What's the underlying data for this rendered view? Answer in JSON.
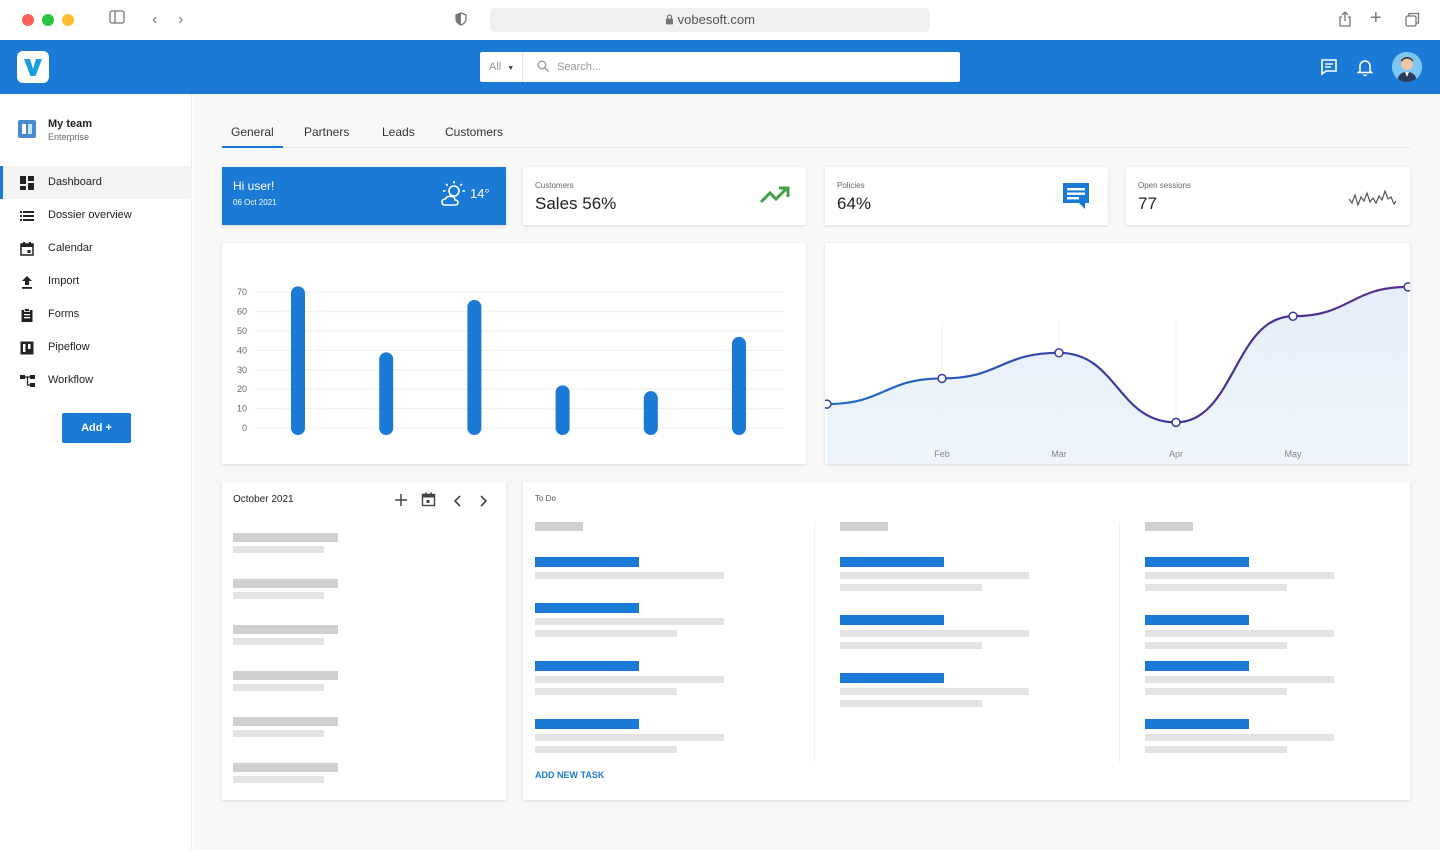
{
  "browser": {
    "url": "vobesoft.com"
  },
  "search": {
    "filter": "All",
    "placeholder": "Search..."
  },
  "sidebar": {
    "team_name": "My team",
    "team_plan": "Enterprise",
    "items": [
      {
        "label": "Dashboard",
        "icon": "dashboard-icon"
      },
      {
        "label": "Dossier overview",
        "icon": "list-icon"
      },
      {
        "label": "Calendar",
        "icon": "calendar-icon"
      },
      {
        "label": "Import",
        "icon": "upload-icon"
      },
      {
        "label": "Forms",
        "icon": "clipboard-icon"
      },
      {
        "label": "Pipeflow",
        "icon": "kanban-icon"
      },
      {
        "label": "Workflow",
        "icon": "workflow-icon"
      }
    ],
    "add_label": "Add +"
  },
  "tabs": [
    "General",
    "Partners",
    "Leads",
    "Customers"
  ],
  "greeting": {
    "title": "Hi user!",
    "date": "06 Oct 2021",
    "temperature": "14°"
  },
  "kpis": [
    {
      "label": "Customers",
      "value": "Sales 56%",
      "icon": "trending-up-icon"
    },
    {
      "label": "Policies",
      "value": "64%",
      "icon": "chat-icon"
    },
    {
      "label": "Open sessions",
      "value": "77",
      "icon": "sparkline-icon"
    }
  ],
  "chart_data": [
    {
      "type": "bar",
      "y_ticks": [
        70,
        60,
        50,
        40,
        30,
        20,
        10,
        0
      ],
      "ylim": [
        0,
        70
      ],
      "values": [
        73,
        39,
        66,
        22,
        19,
        47
      ]
    },
    {
      "type": "area",
      "x_labels": [
        "Feb",
        "Mar",
        "Apr",
        "May"
      ],
      "values": [
        12,
        19,
        26,
        7,
        36,
        44
      ]
    }
  ],
  "calendar": {
    "month": "October 2021"
  },
  "todo": {
    "title": "To Do",
    "add_task": "ADD NEW TASK"
  },
  "colors": {
    "primary": "#1a7ad6",
    "line": "#5b2a86",
    "trend": "#43a047"
  }
}
